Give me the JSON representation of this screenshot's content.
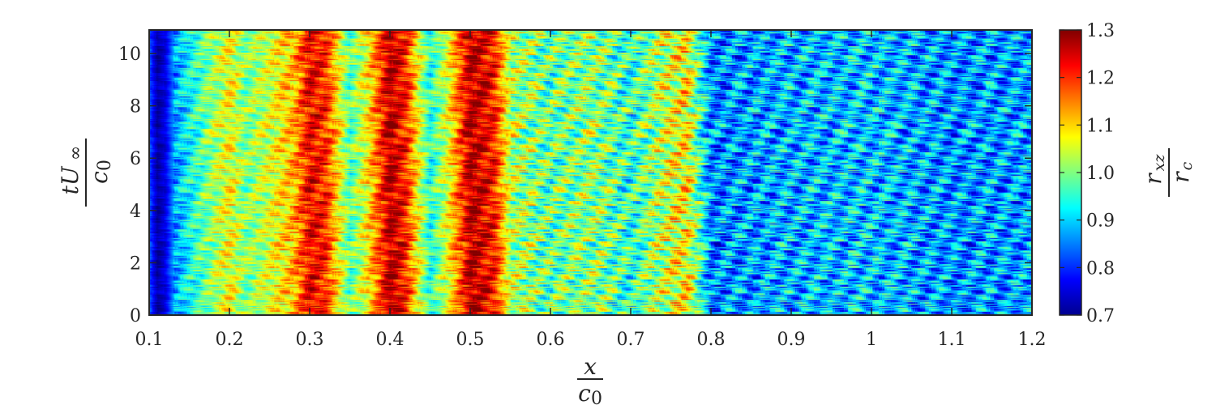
{
  "chart_data": {
    "type": "heatmap",
    "title": "",
    "xlabel": {
      "numerator": "x",
      "denominator": "c",
      "denominator_sub": "0"
    },
    "ylabel": {
      "numerator": "tU",
      "numerator_sub": "∞",
      "denominator": "c",
      "denominator_sub": "0"
    },
    "xlim": [
      0.1,
      1.2
    ],
    "ylim": [
      0,
      10.9
    ],
    "x_ticks": [
      0.1,
      0.2,
      0.3,
      0.4,
      0.5,
      0.6,
      0.7,
      0.8,
      0.9,
      1,
      1.1,
      1.2
    ],
    "x_tick_labels": [
      "0.1",
      "0.2",
      "0.3",
      "0.4",
      "0.5",
      "0.6",
      "0.7",
      "0.8",
      "0.9",
      "1",
      "1.1",
      "1.2"
    ],
    "y_ticks": [
      0,
      2,
      4,
      6,
      8,
      10
    ],
    "y_tick_labels": [
      "0",
      "2",
      "4",
      "6",
      "8",
      "10"
    ],
    "colormap": "jet",
    "clim": [
      0.7,
      1.3
    ],
    "colorbar": {
      "ticks": [
        0.7,
        0.8,
        0.9,
        1.0,
        1.1,
        1.2,
        1.3
      ],
      "tick_labels": [
        "0.7",
        "0.8",
        "0.9",
        "1.0",
        "1.1",
        "1.2",
        "1.3"
      ],
      "label": {
        "numerator": "r",
        "numerator_sub": "xz",
        "denominator": "r",
        "denominator_sub": "c"
      },
      "placement": "right"
    },
    "x_profile": {
      "x": [
        0.1,
        0.11,
        0.12,
        0.13,
        0.15,
        0.18,
        0.2,
        0.22,
        0.25,
        0.28,
        0.3,
        0.32,
        0.35,
        0.37,
        0.4,
        0.42,
        0.45,
        0.47,
        0.5,
        0.53,
        0.55,
        0.6,
        0.65,
        0.7,
        0.75,
        0.77,
        0.8,
        0.85,
        0.9,
        1.0,
        1.1,
        1.2
      ],
      "mean_value": [
        0.82,
        0.72,
        0.76,
        0.86,
        0.93,
        1.02,
        1.07,
        1.0,
        1.05,
        1.12,
        1.23,
        1.2,
        0.97,
        1.07,
        1.27,
        1.2,
        0.94,
        1.05,
        1.27,
        1.21,
        1.03,
        0.98,
        1.01,
        0.95,
        1.06,
        1.08,
        0.85,
        0.87,
        0.88,
        0.89,
        0.86,
        0.87
      ]
    }
  }
}
